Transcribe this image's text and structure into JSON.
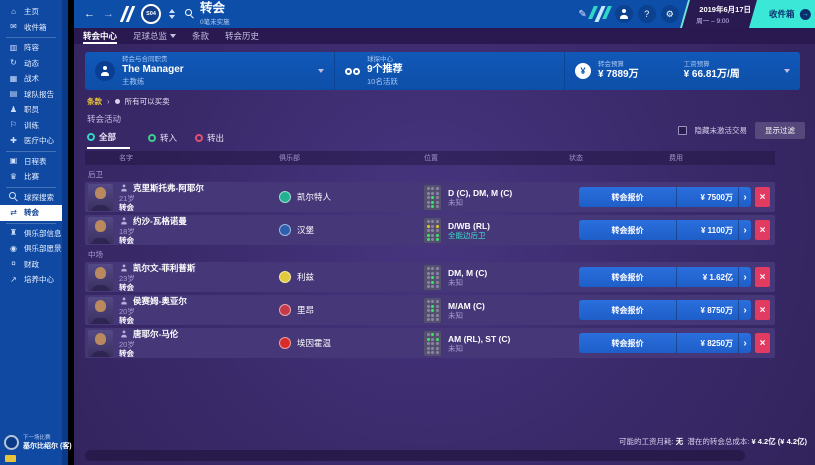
{
  "topbar": {
    "title": "转会",
    "subtitle": "0笔未实施",
    "crest": "S04",
    "date_line1": "2019年6月17日",
    "date_line2": "周一 – 9:00",
    "continue_label": "收件箱"
  },
  "tabbar": {
    "tabs": [
      "转会中心",
      "足球总监",
      "条款",
      "转会历史"
    ]
  },
  "sidebar": {
    "items": [
      {
        "icon": "⌂",
        "label": "主页"
      },
      {
        "icon": "✉",
        "label": "收件箱"
      },
      {
        "icon": "▥",
        "label": "阵容"
      },
      {
        "icon": "↻",
        "label": "动态"
      },
      {
        "icon": "▦",
        "label": "战术"
      },
      {
        "icon": "▤",
        "label": "球队报告"
      },
      {
        "icon": "♟",
        "label": "职员"
      },
      {
        "icon": "⚐",
        "label": "训练"
      },
      {
        "icon": "✚",
        "label": "医疗中心"
      },
      {
        "icon": "▣",
        "label": "日程表"
      },
      {
        "icon": "♛",
        "label": "比赛"
      },
      {
        "icon": "",
        "label": "球探搜索"
      },
      {
        "icon": "⇄",
        "label": "转会"
      },
      {
        "icon": "♜",
        "label": "俱乐部信息"
      },
      {
        "icon": "◉",
        "label": "俱乐部愿景"
      },
      {
        "icon": "¤",
        "label": "财政"
      },
      {
        "icon": "↗",
        "label": "培养中心"
      }
    ],
    "next_match": {
      "label": "下一场比赛",
      "opponent": "基尔比绍尔 (客)"
    }
  },
  "manager_panel": {
    "role_label": "转会与合同职责",
    "name": "The Manager",
    "role": "主教练",
    "scout_label": "球探中心",
    "recommendations": "9个推荐",
    "active_count": "10名活跃",
    "transfer_budget_label": "转会预算",
    "transfer_budget": "¥ 7889万",
    "wage_budget_label": "工资预算",
    "wage_budget": "¥ 66.81万/周"
  },
  "breadcrumb": {
    "terms": "条款",
    "filter": "所有可以买卖"
  },
  "transfer_activity": {
    "title": "转会活动",
    "filters": [
      {
        "label": "全部",
        "color": "#2fd7c6"
      },
      {
        "label": "转入",
        "color": "#3ccf8e"
      },
      {
        "label": "转出",
        "color": "#e0506e"
      }
    ],
    "hide_inactive_label": "隐藏未激活交易",
    "show_filter_label": "显示过滤",
    "columns": [
      "名字",
      "俱乐部",
      "位置",
      "状态",
      "费用"
    ],
    "offer_label": "转会报价",
    "sections": [
      {
        "name": "后卫"
      },
      {
        "name": "中场"
      }
    ],
    "rows": [
      {
        "name": "克里斯托弗-阿耶尔",
        "age": "21岁",
        "tag": "转会",
        "club": "凯尔特人",
        "club_color": "#23b28f",
        "position": "D (C), DM, M (C)",
        "position_sub": "未知",
        "price": "¥ 7500万",
        "pitch": {
          "green": [
            7,
            10,
            13
          ],
          "yellow": []
        }
      },
      {
        "name": "约沙-瓦格诺曼",
        "age": "18岁",
        "tag": "转会",
        "club": "汉堡",
        "club_color": "#2b5fb0",
        "position": "D/WB (RL)",
        "position_sub": "全能边后卫",
        "sub_highlight": true,
        "price": "¥ 1100万",
        "pitch": {
          "green": [
            9,
            11,
            12,
            14
          ],
          "yellow": [
            3,
            5
          ]
        }
      },
      {
        "name": "凯尔文-菲利普斯",
        "age": "23岁",
        "tag": "转会",
        "club": "利兹",
        "club_color": "#e3c93c",
        "position": "DM, M (C)",
        "position_sub": "未知",
        "price": "¥ 1.62亿",
        "pitch": {
          "green": [
            7,
            10
          ],
          "yellow": []
        }
      },
      {
        "name": "侯赛姆-奥亚尔",
        "age": "20岁",
        "tag": "转会",
        "club": "里昂",
        "club_color": "#c43a4a",
        "position": "M/AM (C)",
        "position_sub": "未知",
        "price": "¥ 8750万",
        "pitch": {
          "green": [
            4,
            7
          ],
          "yellow": []
        }
      },
      {
        "name": "唐耶尔-马伦",
        "age": "20岁",
        "tag": "转会",
        "club": "埃因霍温",
        "club_color": "#d92b2b",
        "position": "AM (RL), ST (C)",
        "position_sub": "未知",
        "price": "¥ 8250万",
        "pitch": {
          "green": [
            1,
            3,
            5
          ],
          "yellow": []
        }
      }
    ]
  },
  "footer": {
    "wage_label": "可能的工资月耗:",
    "wage_value": "无",
    "cost_label": "潜在的转会总成本:",
    "cost_value": "¥ 4.2亿 (¥ 4.2亿)"
  }
}
